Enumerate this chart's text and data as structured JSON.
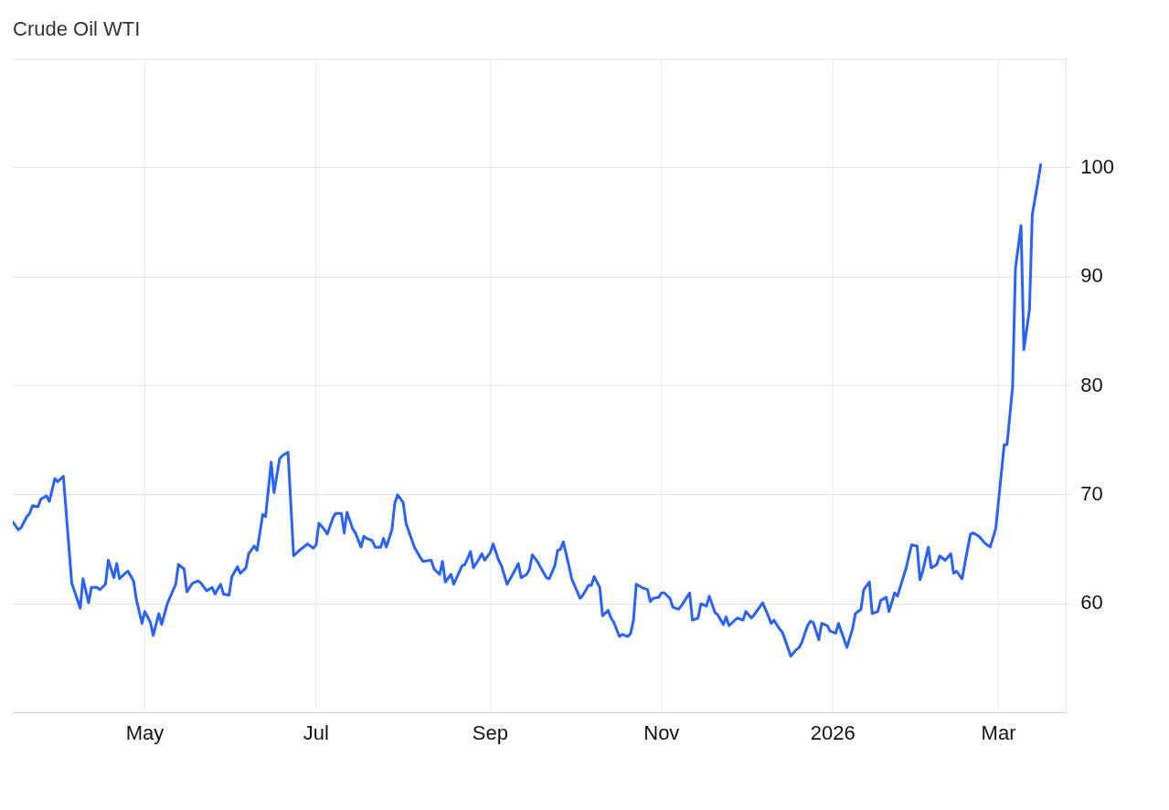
{
  "chart_data": {
    "type": "line",
    "title": "Crude Oil WTI",
    "x": [
      "2025-03-15",
      "2025-03-17",
      "2025-03-18",
      "2025-03-20",
      "2025-03-21",
      "2025-03-22",
      "2025-03-24",
      "2025-03-25",
      "2025-03-27",
      "2025-03-28",
      "2025-03-30",
      "2025-03-31",
      "2025-04-02",
      "2025-04-05",
      "2025-04-08",
      "2025-04-09",
      "2025-04-11",
      "2025-04-12",
      "2025-04-14",
      "2025-04-15",
      "2025-04-17",
      "2025-04-18",
      "2025-04-20",
      "2025-04-21",
      "2025-04-22",
      "2025-04-24",
      "2025-04-25",
      "2025-04-27",
      "2025-04-28",
      "2025-04-30",
      "2025-05-01",
      "2025-05-03",
      "2025-05-04",
      "2025-05-06",
      "2025-05-07",
      "2025-05-09",
      "2025-05-12",
      "2025-05-13",
      "2025-05-15",
      "2025-05-16",
      "2025-05-18",
      "2025-05-20",
      "2025-05-21",
      "2025-05-23",
      "2025-05-25",
      "2025-05-26",
      "2025-05-28",
      "2025-05-29",
      "2025-05-31",
      "2025-06-01",
      "2025-06-03",
      "2025-06-04",
      "2025-06-06",
      "2025-06-07",
      "2025-06-09",
      "2025-06-10",
      "2025-06-12",
      "2025-06-13",
      "2025-06-15",
      "2025-06-16",
      "2025-06-18",
      "2025-06-19",
      "2025-06-21",
      "2025-06-23",
      "2025-06-25",
      "2025-06-27",
      "2025-06-28",
      "2025-06-30",
      "2025-07-01",
      "2025-07-02",
      "2025-07-04",
      "2025-07-05",
      "2025-07-07",
      "2025-07-08",
      "2025-07-10",
      "2025-07-11",
      "2025-07-12",
      "2025-07-14",
      "2025-07-15",
      "2025-07-17",
      "2025-07-18",
      "2025-07-19",
      "2025-07-21",
      "2025-07-22",
      "2025-07-24",
      "2025-07-25",
      "2025-07-26",
      "2025-07-28",
      "2025-07-29",
      "2025-07-30",
      "2025-08-01",
      "2025-08-02",
      "2025-08-05",
      "2025-08-07",
      "2025-08-08",
      "2025-08-11",
      "2025-08-12",
      "2025-08-14",
      "2025-08-15",
      "2025-08-16",
      "2025-08-18",
      "2025-08-19",
      "2025-08-22",
      "2025-08-23",
      "2025-08-25",
      "2025-08-26",
      "2025-08-28",
      "2025-08-29",
      "2025-08-30",
      "2025-09-01",
      "2025-09-02",
      "2025-09-04",
      "2025-09-05",
      "2025-09-07",
      "2025-09-09",
      "2025-09-11",
      "2025-09-12",
      "2025-09-14",
      "2025-09-15",
      "2025-09-16",
      "2025-09-18",
      "2025-09-19",
      "2025-09-21",
      "2025-09-22",
      "2025-09-24",
      "2025-09-25",
      "2025-09-26",
      "2025-09-27",
      "2025-09-29",
      "2025-09-30",
      "2025-10-01",
      "2025-10-03",
      "2025-10-04",
      "2025-10-06",
      "2025-10-07",
      "2025-10-08",
      "2025-10-10",
      "2025-10-11",
      "2025-10-13",
      "2025-10-14",
      "2025-10-15",
      "2025-10-17",
      "2025-10-18",
      "2025-10-20",
      "2025-10-21",
      "2025-10-22",
      "2025-10-23",
      "2025-10-25",
      "2025-10-27",
      "2025-10-28",
      "2025-10-29",
      "2025-10-31",
      "2025-11-01",
      "2025-11-02",
      "2025-11-04",
      "2025-11-05",
      "2025-11-07",
      "2025-11-08",
      "2025-11-09",
      "2025-11-11",
      "2025-11-12",
      "2025-11-14",
      "2025-11-15",
      "2025-11-17",
      "2025-11-18",
      "2025-11-20",
      "2025-11-21",
      "2025-11-23",
      "2025-11-24",
      "2025-11-25",
      "2025-11-28",
      "2025-11-30",
      "2025-12-01",
      "2025-12-03",
      "2025-12-04",
      "2025-12-07",
      "2025-12-09",
      "2025-12-10",
      "2025-12-11",
      "2025-12-13",
      "2025-12-14",
      "2025-12-15",
      "2025-12-17",
      "2025-12-19",
      "2025-12-20",
      "2025-12-21",
      "2025-12-23",
      "2025-12-24",
      "2025-12-25",
      "2025-12-27",
      "2025-12-28",
      "2025-12-30",
      "2025-12-31",
      "2026-01-02",
      "2026-01-03",
      "2026-01-06",
      "2026-01-08",
      "2026-01-09",
      "2026-01-11",
      "2026-01-12",
      "2026-01-14",
      "2026-01-15",
      "2026-01-17",
      "2026-01-18",
      "2026-01-20",
      "2026-01-21",
      "2026-01-23",
      "2026-01-24",
      "2026-01-26",
      "2026-01-27",
      "2026-01-29",
      "2026-01-31",
      "2026-02-01",
      "2026-02-02",
      "2026-02-04",
      "2026-02-05",
      "2026-02-07",
      "2026-02-08",
      "2026-02-10",
      "2026-02-12",
      "2026-02-13",
      "2026-02-14",
      "2026-02-16",
      "2026-02-18",
      "2026-02-19",
      "2026-02-20",
      "2026-02-22",
      "2026-02-24",
      "2026-02-26",
      "2026-02-28",
      "2026-03-03",
      "2026-03-04",
      "2026-03-06",
      "2026-03-07",
      "2026-03-09",
      "2026-03-10",
      "2026-03-12",
      "2026-03-13",
      "2026-03-15",
      "2026-03-16"
    ],
    "series": [
      {
        "color": "#2962ff",
        "values": [
          67.5,
          66.8,
          67.0,
          68.0,
          68.3,
          69.0,
          68.9,
          69.6,
          69.9,
          69.4,
          71.5,
          71.2,
          71.7,
          61.9,
          59.6,
          62.3,
          60.1,
          61.5,
          61.5,
          61.3,
          61.8,
          64.0,
          62.4,
          63.7,
          62.3,
          62.8,
          63.0,
          62.1,
          60.4,
          58.2,
          59.3,
          58.3,
          57.1,
          59.1,
          58.1,
          60.0,
          61.8,
          63.6,
          63.2,
          61.1,
          61.9,
          62.1,
          61.9,
          61.2,
          61.5,
          60.9,
          61.8,
          60.9,
          60.8,
          62.5,
          63.4,
          62.8,
          63.3,
          64.6,
          65.3,
          64.9,
          68.2,
          68.0,
          73.0,
          70.2,
          73.3,
          73.6,
          73.9,
          64.4,
          64.9,
          65.3,
          65.5,
          65.1,
          65.4,
          67.4,
          66.8,
          66.4,
          67.9,
          68.3,
          68.3,
          66.5,
          68.4,
          66.9,
          66.5,
          65.2,
          66.2,
          66.0,
          65.8,
          65.2,
          65.2,
          66.0,
          65.2,
          66.8,
          69.2,
          70.0,
          69.3,
          67.4,
          65.2,
          64.3,
          63.9,
          64.0,
          63.2,
          62.7,
          63.9,
          62.0,
          62.7,
          61.8,
          63.5,
          63.6,
          64.8,
          63.3,
          64.1,
          64.6,
          64.0,
          64.7,
          65.5,
          64.0,
          63.5,
          61.8,
          62.7,
          63.7,
          62.4,
          62.7,
          63.2,
          64.5,
          63.8,
          63.3,
          62.4,
          62.3,
          63.5,
          64.9,
          65.0,
          65.7,
          63.5,
          62.3,
          61.7,
          60.5,
          60.8,
          61.7,
          61.7,
          62.5,
          61.5,
          58.9,
          59.4,
          58.7,
          58.3,
          57.0,
          57.2,
          57.0,
          57.3,
          58.5,
          61.8,
          61.5,
          61.3,
          60.2,
          60.5,
          60.6,
          61.0,
          61.0,
          60.5,
          59.7,
          59.5,
          59.8,
          60.2,
          61.0,
          58.5,
          58.7,
          60.0,
          59.8,
          60.7,
          59.2,
          59.0,
          58.1,
          58.8,
          58.0,
          58.7,
          58.5,
          59.3,
          58.7,
          59.0,
          60.1,
          58.9,
          58.2,
          58.5,
          57.7,
          57.4,
          56.7,
          55.2,
          55.8,
          56.0,
          56.5,
          58.0,
          58.4,
          58.3,
          56.7,
          58.2,
          58.0,
          57.5,
          57.3,
          58.2,
          56.0,
          57.7,
          59.1,
          59.5,
          61.3,
          62.0,
          59.1,
          59.3,
          60.3,
          60.6,
          59.3,
          61.0,
          60.7,
          62.4,
          63.2,
          65.4,
          65.3,
          62.2,
          63.0,
          65.2,
          63.3,
          63.6,
          64.4,
          64.0,
          64.6,
          62.8,
          63.0,
          62.3,
          65.1,
          66.4,
          66.5,
          66.2,
          65.6,
          65.2,
          66.9,
          74.6,
          74.6,
          79.9,
          90.8,
          94.7,
          83.3,
          87.0,
          95.7,
          98.7,
          100.3
        ]
      }
    ],
    "xlim": [
      "2025-03-15",
      "2026-03-25"
    ],
    "xticks": [
      {
        "value": "2025-05-01",
        "label": "May"
      },
      {
        "value": "2025-07-01",
        "label": "Jul"
      },
      {
        "value": "2025-09-01",
        "label": "Sep"
      },
      {
        "value": "2025-11-01",
        "label": "Nov"
      },
      {
        "value": "2026-01-01",
        "label": "2026"
      },
      {
        "value": "2026-03-01",
        "label": "Mar"
      }
    ],
    "ylim": [
      50,
      110
    ],
    "yticks": [
      60,
      70,
      80,
      90,
      100
    ],
    "grid": true,
    "legend": false,
    "marker": "none",
    "line_style": "solid"
  }
}
